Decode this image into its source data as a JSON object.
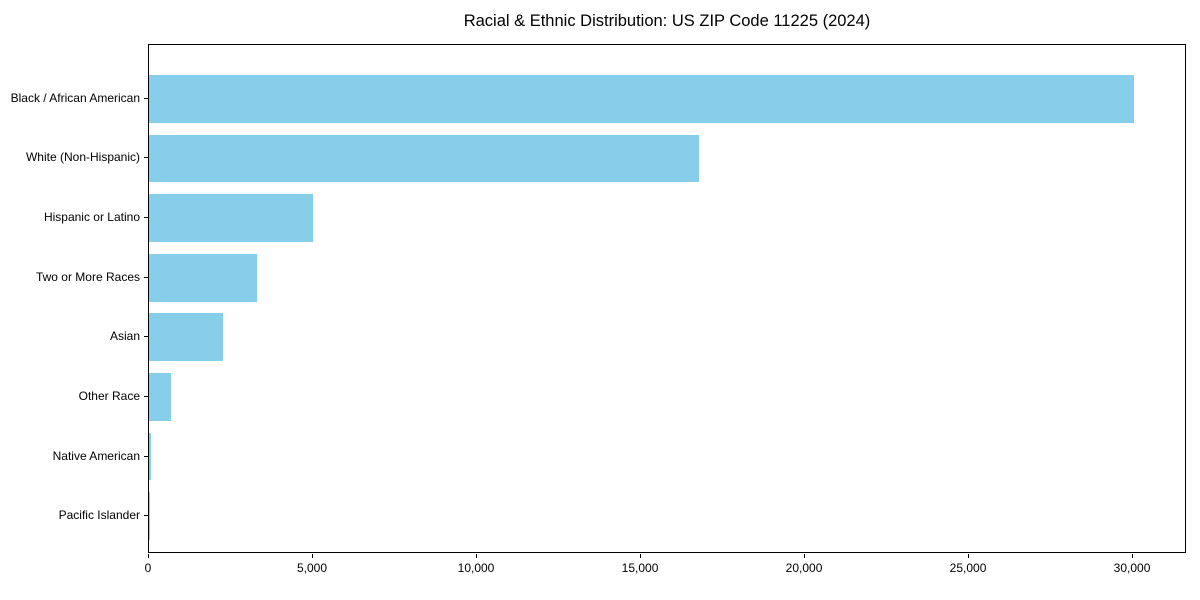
{
  "page": {
    "background_color": "#ffffff",
    "text_color": "#000000"
  },
  "chart_data": {
    "type": "bar",
    "orientation": "horizontal",
    "title": "Racial & Ethnic Distribution: US ZIP Code 11225 (2024)",
    "xlabel": "",
    "ylabel": "",
    "categories": [
      "Black / African American",
      "White (Non-Hispanic)",
      "Hispanic or Latino",
      "Two or More Races",
      "Asian",
      "Other Race",
      "Native American",
      "Pacific Islander"
    ],
    "values": [
      30100,
      16800,
      5000,
      3300,
      2250,
      670,
      50,
      20
    ],
    "xlim": [
      0,
      31645
    ],
    "x_ticks": [
      0,
      5000,
      10000,
      15000,
      20000,
      25000,
      30000
    ],
    "x_tick_labels": [
      "0",
      "5,000",
      "10,000",
      "15,000",
      "20,000",
      "25,000",
      "30,000"
    ],
    "bar_color": "#87CEEB",
    "spine_color": "#000000",
    "grid": false,
    "legend": null,
    "data_labels": false
  }
}
